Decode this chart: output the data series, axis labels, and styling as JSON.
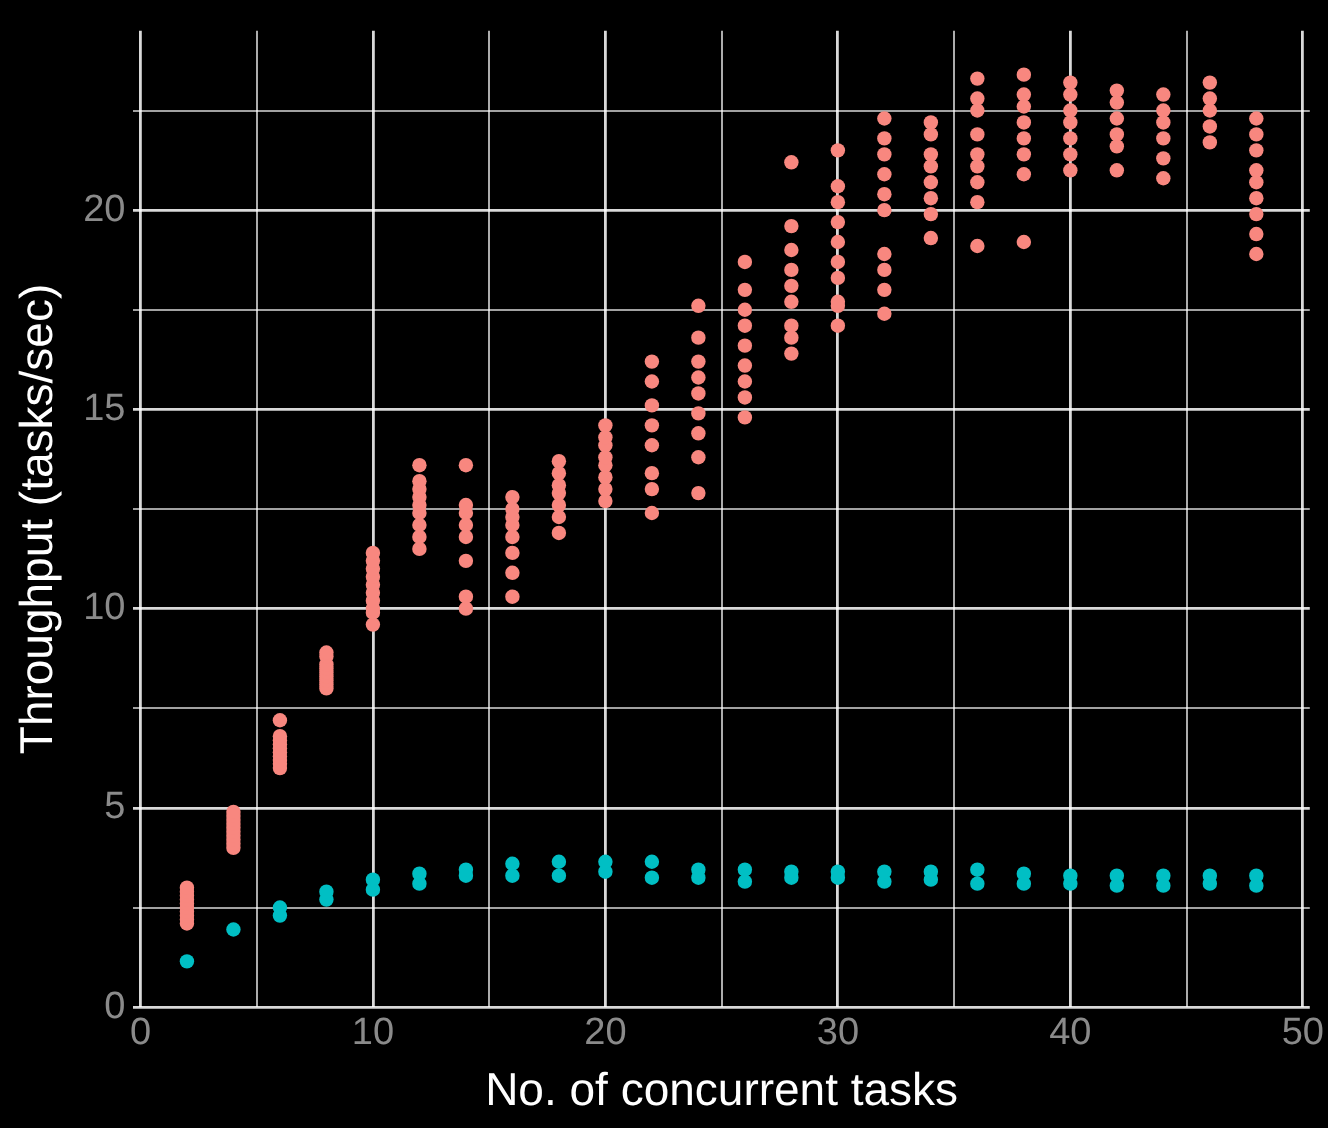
{
  "chart_data": {
    "type": "scatter",
    "xlabel": "No. of concurrent tasks",
    "ylabel": "Throughput (tasks/sec)",
    "xlim": [
      -0.3,
      50.3
    ],
    "xticks": [
      0,
      {
        "value": 5,
        "label": null
      },
      10,
      {
        "value": 15,
        "label": null
      },
      20,
      {
        "value": 25,
        "label": null
      },
      30,
      {
        "value": 35,
        "label": null
      },
      40,
      {
        "value": 45,
        "label": null
      },
      50
    ],
    "ylim": [
      0,
      24.5
    ],
    "yticks": [
      0,
      {
        "value": 2.5,
        "label": null
      },
      5,
      {
        "value": 7.5,
        "label": null
      },
      10,
      {
        "value": 12.5,
        "label": null
      },
      15,
      {
        "value": 17.5,
        "label": null
      },
      20,
      {
        "value": 22.5,
        "label": null
      }
    ],
    "grid": true,
    "legend": false,
    "marker": "circle",
    "series": [
      {
        "color": "#f8877f",
        "x": [
          2,
          2,
          2,
          2,
          2,
          2,
          2,
          2,
          2,
          2,
          4,
          4,
          4,
          4,
          4,
          4,
          4,
          4,
          4,
          4,
          6,
          6,
          6,
          6,
          6,
          6,
          6,
          6,
          6,
          6,
          8,
          8,
          8,
          8,
          8,
          8,
          8,
          8,
          8,
          10,
          10,
          10,
          10,
          10,
          10,
          10,
          10,
          10,
          10,
          12,
          12,
          12,
          12,
          12,
          12,
          12,
          12,
          12,
          14,
          14,
          14,
          14,
          14,
          14,
          14,
          14,
          16,
          16,
          16,
          16,
          16,
          16,
          16,
          16,
          18,
          18,
          18,
          18,
          18,
          18,
          18,
          20,
          20,
          20,
          20,
          20,
          20,
          20,
          20,
          22,
          22,
          22,
          22,
          22,
          22,
          22,
          22,
          24,
          24,
          24,
          24,
          24,
          24,
          24,
          24,
          24,
          26,
          26,
          26,
          26,
          26,
          26,
          26,
          26,
          26,
          28,
          28,
          28,
          28,
          28,
          28,
          28,
          28,
          28,
          30,
          30,
          30,
          30,
          30,
          30,
          30,
          30,
          30,
          30,
          32,
          32,
          32,
          32,
          32,
          32,
          32,
          32,
          32,
          32,
          34,
          34,
          34,
          34,
          34,
          34,
          34,
          34,
          36,
          36,
          36,
          36,
          36,
          36,
          36,
          36,
          36,
          38,
          38,
          38,
          38,
          38,
          38,
          38,
          38,
          40,
          40,
          40,
          40,
          40,
          40,
          40,
          42,
          42,
          42,
          42,
          42,
          42,
          44,
          44,
          44,
          44,
          44,
          44,
          46,
          46,
          46,
          46,
          46,
          48,
          48,
          48,
          48,
          48,
          48,
          48,
          48,
          48
        ],
        "values": [
          2.1,
          2.2,
          2.3,
          2.4,
          2.5,
          2.6,
          2.7,
          2.8,
          2.9,
          3.0,
          4.0,
          4.1,
          4.2,
          4.3,
          4.4,
          4.5,
          4.6,
          4.7,
          4.8,
          4.9,
          6.0,
          6.1,
          6.2,
          6.3,
          6.4,
          6.5,
          6.6,
          6.7,
          6.8,
          7.2,
          8.0,
          8.1,
          8.2,
          8.3,
          8.4,
          8.5,
          8.6,
          8.8,
          8.9,
          9.6,
          9.9,
          10.0,
          10.2,
          10.4,
          10.6,
          10.8,
          11.0,
          11.2,
          11.4,
          11.5,
          11.8,
          12.1,
          12.4,
          12.6,
          12.8,
          13.0,
          13.2,
          13.6,
          10.0,
          10.3,
          11.2,
          11.8,
          12.1,
          12.4,
          12.6,
          13.6,
          10.3,
          10.9,
          11.4,
          11.8,
          12.1,
          12.3,
          12.5,
          12.8,
          11.9,
          12.3,
          12.6,
          12.9,
          13.1,
          13.4,
          13.7,
          12.7,
          13.0,
          13.3,
          13.6,
          13.8,
          14.1,
          14.3,
          14.6,
          12.4,
          13.0,
          13.4,
          14.1,
          14.6,
          15.1,
          15.7,
          16.2,
          12.9,
          13.8,
          14.4,
          14.9,
          15.4,
          15.8,
          16.2,
          16.8,
          17.6,
          14.8,
          15.3,
          15.7,
          16.1,
          16.6,
          17.1,
          17.5,
          18.0,
          18.7,
          16.4,
          16.8,
          17.1,
          17.7,
          18.1,
          18.5,
          19.0,
          19.6,
          21.2,
          17.1,
          17.6,
          17.7,
          18.3,
          18.7,
          19.2,
          19.7,
          20.2,
          20.6,
          21.5,
          17.4,
          18.0,
          18.5,
          18.9,
          20.0,
          20.4,
          20.9,
          21.4,
          21.8,
          22.3,
          19.3,
          19.9,
          20.3,
          20.7,
          21.1,
          21.4,
          21.9,
          22.2,
          19.1,
          20.2,
          20.7,
          21.1,
          21.4,
          21.9,
          22.5,
          22.8,
          23.3,
          19.2,
          20.9,
          21.4,
          21.8,
          22.2,
          22.6,
          22.9,
          23.4,
          21.0,
          21.4,
          21.8,
          22.2,
          22.5,
          22.9,
          23.2,
          21.0,
          21.6,
          21.9,
          22.3,
          22.7,
          23.0,
          20.8,
          21.3,
          21.8,
          22.2,
          22.5,
          22.9,
          21.7,
          22.1,
          22.5,
          22.8,
          23.2,
          18.9,
          19.4,
          19.9,
          20.3,
          20.7,
          21.0,
          21.5,
          21.9,
          22.3
        ]
      },
      {
        "color": "#00bfc4",
        "x": [
          2,
          4,
          6,
          6,
          8,
          8,
          10,
          10,
          12,
          12,
          14,
          14,
          16,
          16,
          18,
          18,
          20,
          20,
          22,
          22,
          24,
          24,
          26,
          26,
          28,
          28,
          30,
          30,
          32,
          32,
          34,
          34,
          36,
          36,
          38,
          38,
          40,
          40,
          42,
          42,
          44,
          44,
          46,
          46,
          48,
          48
        ],
        "values": [
          1.15,
          1.95,
          2.3,
          2.5,
          2.7,
          2.9,
          2.95,
          3.2,
          3.1,
          3.35,
          3.3,
          3.45,
          3.3,
          3.6,
          3.3,
          3.65,
          3.4,
          3.65,
          3.25,
          3.65,
          3.25,
          3.45,
          3.15,
          3.45,
          3.25,
          3.4,
          3.25,
          3.4,
          3.15,
          3.4,
          3.2,
          3.4,
          3.1,
          3.45,
          3.1,
          3.35,
          3.1,
          3.3,
          3.05,
          3.3,
          3.05,
          3.3,
          3.1,
          3.3,
          3.05,
          3.3
        ]
      }
    ]
  }
}
